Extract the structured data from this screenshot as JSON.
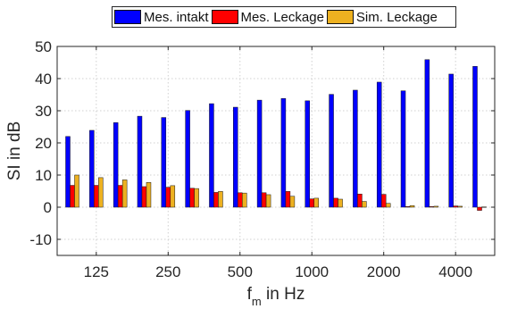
{
  "chart_data": {
    "type": "bar",
    "title": "",
    "xlabel": "f",
    "xlabel_subscript": "m",
    "xlabel_suffix": " in Hz",
    "ylabel": "SI in dB",
    "ylim": [
      -15,
      50
    ],
    "yticks": [
      -10,
      0,
      10,
      20,
      30,
      40,
      50
    ],
    "ytick_labels": [
      "-10",
      "0",
      "10",
      "20",
      "30",
      "40",
      "50"
    ],
    "n_bands": 18,
    "xtick_band_indices": [
      2,
      5,
      8,
      11,
      14,
      17
    ],
    "xtick_labels": [
      "125",
      "250",
      "500",
      "1000",
      "2000",
      "4000"
    ],
    "grid": true,
    "legend_position": "top",
    "series": [
      {
        "name": "Mes. intakt",
        "color": "#0000ff",
        "values": [
          22,
          23.9,
          26.3,
          28.3,
          27.9,
          30.1,
          32.2,
          31.1,
          33.3,
          33.8,
          33.1,
          35.1,
          36.4,
          38.9,
          36.2,
          45.9,
          41.4,
          43.8
        ]
      },
      {
        "name": "Mes. Leckage",
        "color": "#ff0000",
        "values": [
          6.8,
          6.8,
          6.8,
          6.4,
          6.2,
          5.9,
          4.6,
          4.5,
          4.5,
          4.9,
          2.6,
          2.8,
          4.1,
          4.0,
          0.2,
          0.2,
          0.4,
          -1.0
        ]
      },
      {
        "name": "Sim. Leckage",
        "color": "#edb120",
        "values": [
          10.0,
          9.2,
          8.5,
          7.7,
          6.7,
          5.8,
          4.9,
          4.4,
          3.9,
          3.4,
          2.8,
          2.5,
          1.8,
          1.2,
          0.5,
          0.3,
          0.3,
          0.1
        ]
      }
    ]
  }
}
